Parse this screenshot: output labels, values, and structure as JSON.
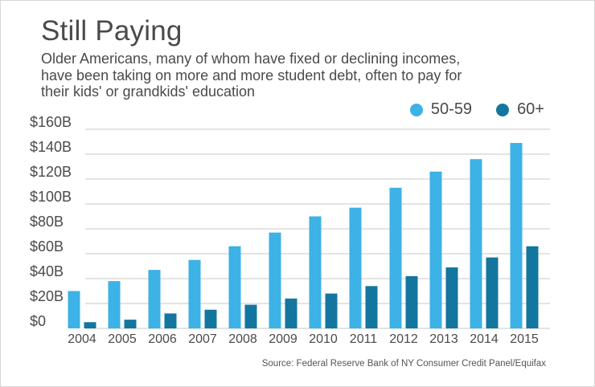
{
  "title": "Still Paying",
  "subtitle_lines": [
    "Older Americans, many of whom have fixed or declining incomes,",
    "have been taking on more and more student debt, often to pay for",
    "their kids' or grandkids' education"
  ],
  "source": "Source: Federal Reserve Bank of NY Consumer Credit Panel/Equifax",
  "colors": {
    "series_a": "#3cb2e6",
    "series_b": "#13769e",
    "grid": "#c9c9c9",
    "text": "#4a4a4a"
  },
  "chart_data": {
    "type": "bar",
    "categories": [
      "2004",
      "2005",
      "2006",
      "2007",
      "2008",
      "2009",
      "2010",
      "2011",
      "2012",
      "2013",
      "2014",
      "2015"
    ],
    "series": [
      {
        "name": "50-59",
        "color": "#3cb2e6",
        "values": [
          30,
          38,
          47,
          55,
          66,
          77,
          90,
          97,
          113,
          126,
          136,
          149
        ]
      },
      {
        "name": "60+",
        "color": "#13769e",
        "values": [
          5,
          7,
          12,
          15,
          19,
          24,
          28,
          34,
          42,
          49,
          57,
          66
        ]
      }
    ],
    "ylim": [
      0,
      160
    ],
    "yticks": [
      0,
      20,
      40,
      60,
      80,
      100,
      120,
      140,
      160
    ],
    "ytick_labels": [
      "$0",
      "$20B",
      "$40B",
      "$60B",
      "$80B",
      "$100B",
      "$120B",
      "$140B",
      "$160B"
    ],
    "legend_position": "top-right",
    "grid": true
  }
}
